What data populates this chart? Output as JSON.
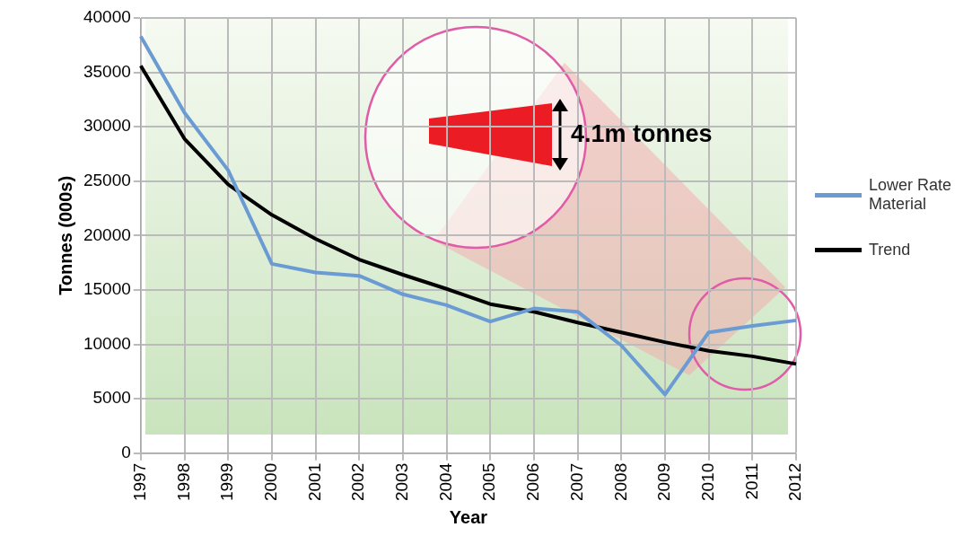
{
  "chart_data": {
    "type": "line",
    "xlabel": "Year",
    "ylabel": "Tonnes (000s)",
    "categories": [
      "1997",
      "1998",
      "1999",
      "2000",
      "2001",
      "2002",
      "2003",
      "2004",
      "2005",
      "2006",
      "2007",
      "2008",
      "2009",
      "2010",
      "2011",
      "2012"
    ],
    "series": [
      {
        "name": "Lower Rate Material",
        "color": "#6a9bd3",
        "values": [
          38300,
          31300,
          26000,
          17400,
          16600,
          16300,
          14600,
          13600,
          12100,
          13300,
          13000,
          9900,
          5400,
          11100,
          11700,
          12200
        ]
      },
      {
        "name": "Trend",
        "color": "#000000",
        "values": [
          35600,
          28900,
          24700,
          21900,
          19700,
          17800,
          16400,
          15100,
          13700,
          13000,
          12000,
          11100,
          10200,
          9400,
          8900,
          8200
        ]
      }
    ],
    "ylim": [
      0,
      40000
    ],
    "yticks": [
      0,
      5000,
      10000,
      15000,
      20000,
      25000,
      30000,
      35000,
      40000
    ],
    "grid": true,
    "legend": "right",
    "marker": "none",
    "line_style": "solid",
    "annotations": [
      "4.1m tonnes"
    ]
  }
}
